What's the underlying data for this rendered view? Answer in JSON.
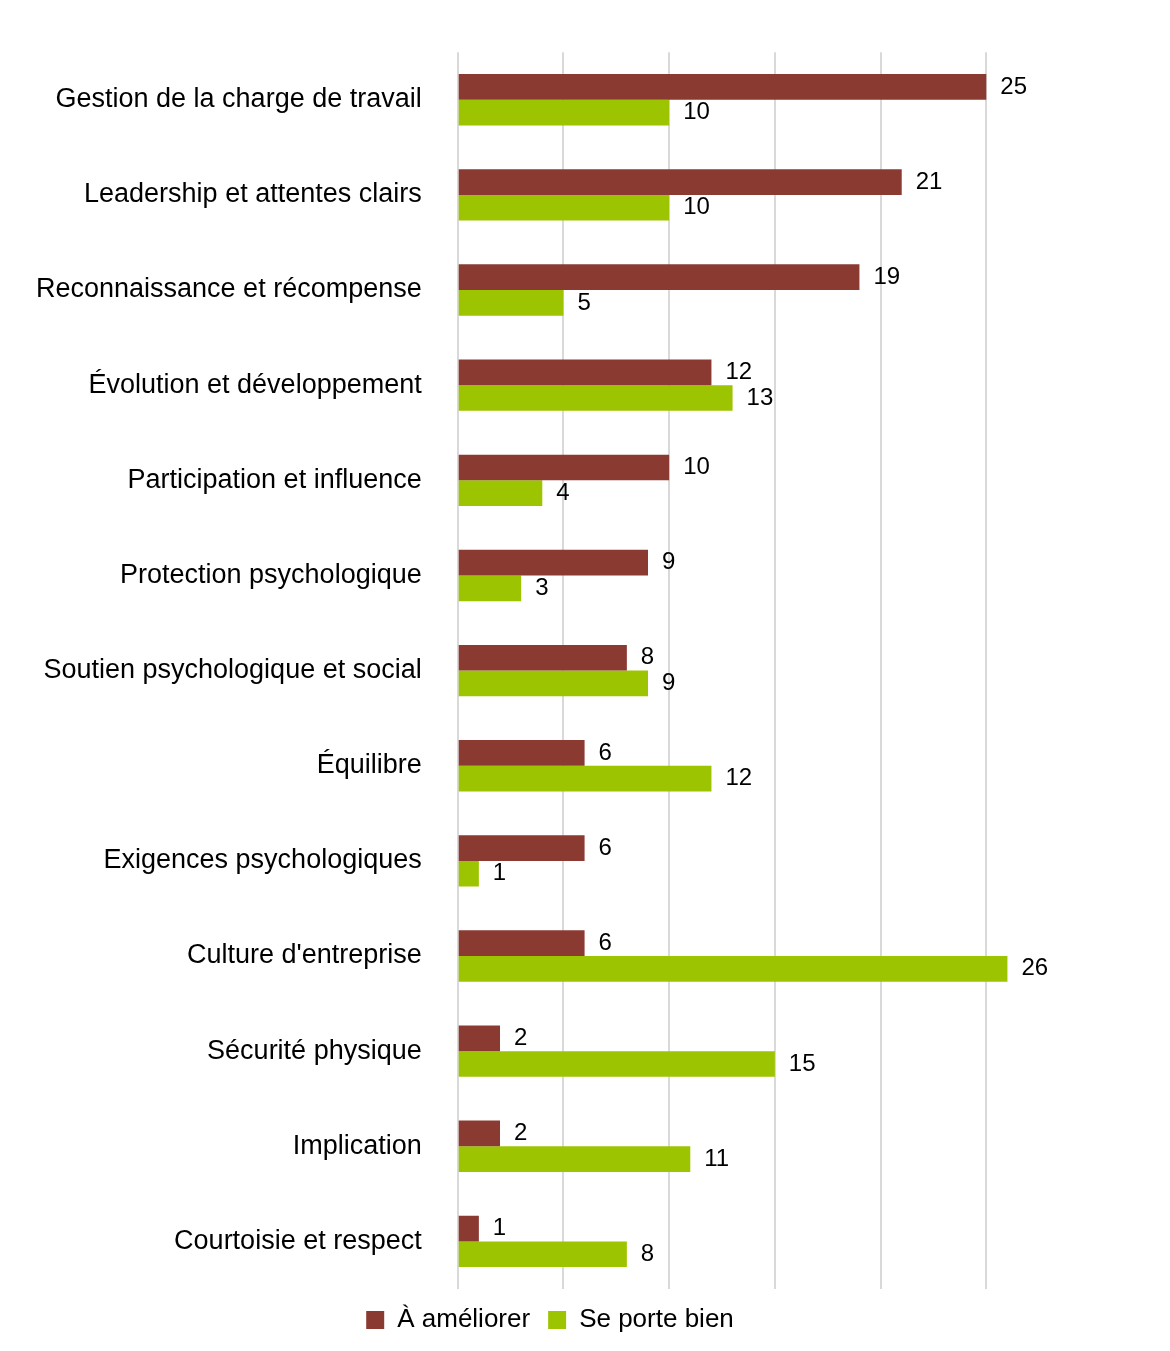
{
  "chart_data": {
    "type": "bar",
    "orientation": "horizontal",
    "categories": [
      "Gestion de la charge de travail",
      "Leadership et attentes clairs",
      "Reconnaissance et récompense",
      "Évolution et développement",
      "Participation et influence",
      "Protection psychologique",
      "Soutien psychologique et social",
      "Équilibre",
      "Exigences psychologiques",
      "Culture d'entreprise",
      "Sécurité physique",
      "Implication",
      "Courtoisie et respect"
    ],
    "series": [
      {
        "name": "À améliorer",
        "color": "#8b3a32",
        "values": [
          25,
          21,
          19,
          12,
          10,
          9,
          8,
          6,
          6,
          6,
          2,
          2,
          1
        ]
      },
      {
        "name": "Se porte bien",
        "color": "#9dc400",
        "values": [
          10,
          10,
          5,
          13,
          4,
          3,
          9,
          12,
          1,
          26,
          15,
          11,
          8
        ]
      }
    ],
    "xticks": [
      {
        "value": 0,
        "label": null
      },
      {
        "value": 5,
        "label": null
      },
      {
        "value": 10,
        "label": null
      },
      {
        "value": 15,
        "label": null
      },
      {
        "value": 20,
        "label": null
      },
      {
        "value": 25,
        "label": null
      }
    ],
    "grid": "x",
    "legend": "bottom",
    "tick_labels": "y",
    "data_labels": true
  }
}
